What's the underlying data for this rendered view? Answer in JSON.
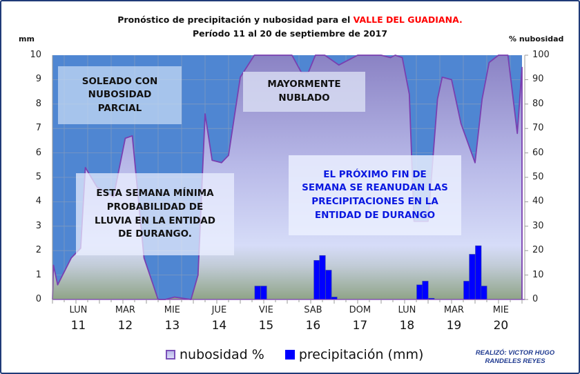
{
  "header": {
    "title_prefix": "Pronóstico de precipitación y nubosidad para  el ",
    "title_highlight": "VALLE DEL GUADIANA.",
    "subtitle": "Período  11 al 20 de septiembre de 2017"
  },
  "axes": {
    "left_label": "mm",
    "right_label": "% nubosidad",
    "left_ticks": [
      "0",
      "1",
      "2",
      "3",
      "4",
      "5",
      "6",
      "7",
      "8",
      "9",
      "10"
    ],
    "right_ticks": [
      "0",
      "10",
      "20",
      "30",
      "40",
      "50",
      "60",
      "70",
      "80",
      "90",
      "100"
    ]
  },
  "days": [
    {
      "dow": "LUN",
      "num": "11"
    },
    {
      "dow": "MAR",
      "num": "12"
    },
    {
      "dow": "MIE",
      "num": "13"
    },
    {
      "dow": "JUE",
      "num": "14"
    },
    {
      "dow": "VIE",
      "num": "15"
    },
    {
      "dow": "SAB",
      "num": "16"
    },
    {
      "dow": "DOM",
      "num": "17"
    },
    {
      "dow": "LUN",
      "num": "18"
    },
    {
      "dow": "MAR",
      "num": "19"
    },
    {
      "dow": "MIE",
      "num": "20"
    }
  ],
  "notes": {
    "note1": [
      "SOLEADO CON",
      "NUBOSIDAD",
      "PARCIAL"
    ],
    "note2": [
      "MAYORMENTE",
      "NUBLADO"
    ],
    "note3": [
      "ESTA SEMANA MÍNIMA",
      "PROBABILIDAD DE",
      "LLUVIA EN LA ENTIDAD",
      "DE DURANGO."
    ],
    "note4": [
      "EL PRÓXIMO FIN DE",
      "SEMANA SE REANUDAN LAS",
      "PRECIPITACIONES EN LA",
      "ENTIDAD DE DURANGO"
    ]
  },
  "legend": {
    "cloud_label": "nubosidad %",
    "precip_label": "precipitación (mm)"
  },
  "credit": {
    "line1": "REALIZÓ: VICTOR HUGO",
    "line2": "RANDELES REYES"
  },
  "colors": {
    "plot_bg": "#4f86d2",
    "cloud_line": "#7a3fb0",
    "precip_bar": "#0000ff",
    "title_highlight": "#ff0000",
    "note4_text": "#0a18e0",
    "credit_text": "#1f3a90",
    "frame_border": "#1f3a78"
  },
  "chart_data": {
    "type": "area+bar",
    "title": "Pronóstico de precipitación y nubosidad para el VALLE DEL GUADIANA. Período 11 al 20 de septiembre de 2017",
    "xlabel": "",
    "ylabel_left": "mm",
    "ylabel_right": "% nubosidad",
    "ylim_left": [
      0,
      10
    ],
    "ylim_right": [
      0,
      100
    ],
    "grid": true,
    "legend_position": "bottom",
    "categories": [
      "LUN 11",
      "MAR 12",
      "MIE 13",
      "JUE 14",
      "VIE 15",
      "SAB 16",
      "DOM 17",
      "LUN 18",
      "MAR 19",
      "MIE 20"
    ],
    "series": [
      {
        "name": "nubosidad %",
        "type": "area",
        "axis": "right",
        "x_day_fraction": [
          0.0,
          0.02,
          0.11,
          0.4,
          0.6,
          0.7,
          0.95,
          1.3,
          1.55,
          1.7,
          1.95,
          2.25,
          2.4,
          2.6,
          2.95,
          3.1,
          3.25,
          3.4,
          3.6,
          3.75,
          4.0,
          4.3,
          4.6,
          4.95,
          5.1,
          5.3,
          5.45,
          5.6,
          5.8,
          6.1,
          6.5,
          6.8,
          7.0,
          7.2,
          7.3,
          7.45,
          7.6,
          7.7,
          8.0,
          8.2,
          8.3,
          8.5,
          8.7,
          9.0,
          9.15,
          9.3,
          9.5,
          9.7,
          9.9,
          10.0
        ],
        "values": [
          0,
          14,
          6,
          17,
          21,
          54,
          46,
          42,
          66,
          67,
          17,
          0,
          0,
          1,
          0,
          10,
          76,
          57,
          56,
          59,
          91,
          100,
          100,
          100,
          100,
          93,
          93,
          100,
          100,
          96,
          100,
          100,
          100,
          99,
          100,
          99,
          84,
          32,
          32,
          82,
          91,
          90,
          72,
          56,
          82,
          97,
          100,
          100,
          68,
          95
        ]
      },
      {
        "name": "precipitación (mm)",
        "type": "bar",
        "axis": "left",
        "x_day_fraction": [
          4.37,
          4.5,
          5.63,
          5.75,
          5.88,
          6.0,
          7.82,
          7.94,
          8.07,
          8.82,
          8.94,
          9.07,
          9.19
        ],
        "values": [
          0.55,
          0.55,
          1.6,
          1.8,
          1.2,
          0.1,
          0.6,
          0.75,
          0.05,
          0.75,
          1.85,
          2.2,
          0.55
        ]
      }
    ]
  }
}
